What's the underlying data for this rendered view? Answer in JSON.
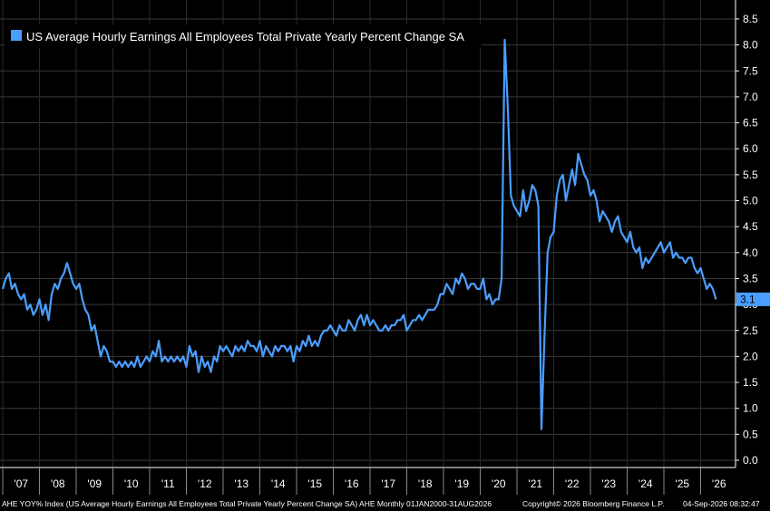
{
  "chart_data": {
    "type": "line",
    "title": "",
    "xlabel": "",
    "ylabel": "",
    "ylim": [
      0,
      8.8
    ],
    "grid": true,
    "legend_position": "top-left",
    "series": [
      {
        "name": "US Average Hourly Earnings All Employees Total Private Yearly Percent Change SA",
        "color": "#4a9eff",
        "points": [
          [
            "2007-01",
            3.3
          ],
          [
            "2007-02",
            3.5
          ],
          [
            "2007-03",
            3.6
          ],
          [
            "2007-04",
            3.3
          ],
          [
            "2007-05",
            3.4
          ],
          [
            "2007-06",
            3.2
          ],
          [
            "2007-07",
            3.1
          ],
          [
            "2007-08",
            3.2
          ],
          [
            "2007-09",
            2.9
          ],
          [
            "2007-10",
            3.0
          ],
          [
            "2007-11",
            2.8
          ],
          [
            "2007-12",
            2.9
          ],
          [
            "2008-01",
            3.1
          ],
          [
            "2008-02",
            2.8
          ],
          [
            "2008-03",
            3.0
          ],
          [
            "2008-04",
            2.7
          ],
          [
            "2008-05",
            3.2
          ],
          [
            "2008-06",
            3.4
          ],
          [
            "2008-07",
            3.3
          ],
          [
            "2008-08",
            3.5
          ],
          [
            "2008-09",
            3.6
          ],
          [
            "2008-10",
            3.8
          ],
          [
            "2008-11",
            3.6
          ],
          [
            "2008-12",
            3.4
          ],
          [
            "2009-01",
            3.3
          ],
          [
            "2009-02",
            3.4
          ],
          [
            "2009-03",
            3.1
          ],
          [
            "2009-04",
            2.9
          ],
          [
            "2009-05",
            2.8
          ],
          [
            "2009-06",
            2.5
          ],
          [
            "2009-07",
            2.6
          ],
          [
            "2009-08",
            2.3
          ],
          [
            "2009-09",
            2.0
          ],
          [
            "2009-10",
            2.2
          ],
          [
            "2009-11",
            2.1
          ],
          [
            "2009-12",
            1.9
          ],
          [
            "2010-01",
            1.9
          ],
          [
            "2010-02",
            1.8
          ],
          [
            "2010-03",
            1.9
          ],
          [
            "2010-04",
            1.8
          ],
          [
            "2010-05",
            1.9
          ],
          [
            "2010-06",
            1.8
          ],
          [
            "2010-07",
            1.9
          ],
          [
            "2010-08",
            1.8
          ],
          [
            "2010-09",
            2.0
          ],
          [
            "2010-10",
            1.8
          ],
          [
            "2010-11",
            1.9
          ],
          [
            "2010-12",
            2.0
          ],
          [
            "2011-01",
            1.9
          ],
          [
            "2011-02",
            2.1
          ],
          [
            "2011-03",
            2.0
          ],
          [
            "2011-04",
            2.3
          ],
          [
            "2011-05",
            1.9
          ],
          [
            "2011-06",
            2.0
          ],
          [
            "2011-07",
            1.9
          ],
          [
            "2011-08",
            2.0
          ],
          [
            "2011-09",
            1.9
          ],
          [
            "2011-10",
            2.0
          ],
          [
            "2011-11",
            1.9
          ],
          [
            "2011-12",
            2.0
          ],
          [
            "2012-01",
            1.8
          ],
          [
            "2012-02",
            2.2
          ],
          [
            "2012-03",
            2.0
          ],
          [
            "2012-04",
            2.1
          ],
          [
            "2012-05",
            1.7
          ],
          [
            "2012-06",
            2.0
          ],
          [
            "2012-07",
            1.8
          ],
          [
            "2012-08",
            1.9
          ],
          [
            "2012-09",
            1.7
          ],
          [
            "2012-10",
            2.0
          ],
          [
            "2012-11",
            1.9
          ],
          [
            "2012-12",
            2.2
          ],
          [
            "2013-01",
            2.1
          ],
          [
            "2013-02",
            2.2
          ],
          [
            "2013-03",
            2.1
          ],
          [
            "2013-04",
            2.0
          ],
          [
            "2013-05",
            2.2
          ],
          [
            "2013-06",
            2.1
          ],
          [
            "2013-07",
            2.2
          ],
          [
            "2013-08",
            2.1
          ],
          [
            "2013-09",
            2.3
          ],
          [
            "2013-10",
            2.2
          ],
          [
            "2013-11",
            2.2
          ],
          [
            "2013-12",
            2.1
          ],
          [
            "2014-01",
            2.3
          ],
          [
            "2014-02",
            2.0
          ],
          [
            "2014-03",
            2.2
          ],
          [
            "2014-04",
            2.1
          ],
          [
            "2014-05",
            2.0
          ],
          [
            "2014-06",
            2.2
          ],
          [
            "2014-07",
            2.1
          ],
          [
            "2014-08",
            2.2
          ],
          [
            "2014-09",
            2.2
          ],
          [
            "2014-10",
            2.1
          ],
          [
            "2014-11",
            2.2
          ],
          [
            "2014-12",
            1.9
          ],
          [
            "2015-01",
            2.2
          ],
          [
            "2015-02",
            2.1
          ],
          [
            "2015-03",
            2.3
          ],
          [
            "2015-04",
            2.2
          ],
          [
            "2015-05",
            2.4
          ],
          [
            "2015-06",
            2.2
          ],
          [
            "2015-07",
            2.3
          ],
          [
            "2015-08",
            2.2
          ],
          [
            "2015-09",
            2.4
          ],
          [
            "2015-10",
            2.5
          ],
          [
            "2015-11",
            2.5
          ],
          [
            "2015-12",
            2.6
          ],
          [
            "2016-01",
            2.5
          ],
          [
            "2016-02",
            2.4
          ],
          [
            "2016-03",
            2.6
          ],
          [
            "2016-04",
            2.5
          ],
          [
            "2016-05",
            2.5
          ],
          [
            "2016-06",
            2.7
          ],
          [
            "2016-07",
            2.6
          ],
          [
            "2016-08",
            2.5
          ],
          [
            "2016-09",
            2.7
          ],
          [
            "2016-10",
            2.8
          ],
          [
            "2016-11",
            2.6
          ],
          [
            "2016-12",
            2.8
          ],
          [
            "2017-01",
            2.6
          ],
          [
            "2017-02",
            2.7
          ],
          [
            "2017-03",
            2.6
          ],
          [
            "2017-04",
            2.5
          ],
          [
            "2017-05",
            2.5
          ],
          [
            "2017-06",
            2.6
          ],
          [
            "2017-07",
            2.5
          ],
          [
            "2017-08",
            2.6
          ],
          [
            "2017-09",
            2.6
          ],
          [
            "2017-10",
            2.7
          ],
          [
            "2017-11",
            2.7
          ],
          [
            "2017-12",
            2.8
          ],
          [
            "2018-01",
            2.5
          ],
          [
            "2018-02",
            2.6
          ],
          [
            "2018-03",
            2.7
          ],
          [
            "2018-04",
            2.7
          ],
          [
            "2018-05",
            2.8
          ],
          [
            "2018-06",
            2.7
          ],
          [
            "2018-07",
            2.8
          ],
          [
            "2018-08",
            2.9
          ],
          [
            "2018-09",
            2.9
          ],
          [
            "2018-10",
            2.9
          ],
          [
            "2018-11",
            3.0
          ],
          [
            "2018-12",
            3.2
          ],
          [
            "2019-01",
            3.2
          ],
          [
            "2019-02",
            3.4
          ],
          [
            "2019-03",
            3.3
          ],
          [
            "2019-04",
            3.2
          ],
          [
            "2019-05",
            3.5
          ],
          [
            "2019-06",
            3.4
          ],
          [
            "2019-07",
            3.6
          ],
          [
            "2019-08",
            3.5
          ],
          [
            "2019-09",
            3.3
          ],
          [
            "2019-10",
            3.4
          ],
          [
            "2019-11",
            3.4
          ],
          [
            "2019-12",
            3.3
          ],
          [
            "2020-01",
            3.3
          ],
          [
            "2020-02",
            3.5
          ],
          [
            "2020-03",
            3.1
          ],
          [
            "2020-04",
            3.2
          ],
          [
            "2020-05",
            3.0
          ],
          [
            "2020-06",
            3.1
          ],
          [
            "2020-07",
            3.1
          ],
          [
            "2020-08",
            3.5
          ],
          [
            "2020-09",
            8.1
          ],
          [
            "2020-10",
            6.8
          ],
          [
            "2020-11",
            5.1
          ],
          [
            "2020-12",
            4.9
          ],
          [
            "2021-01",
            4.8
          ],
          [
            "2021-02",
            4.7
          ],
          [
            "2021-03",
            5.2
          ],
          [
            "2021-04",
            4.8
          ],
          [
            "2021-05",
            5.0
          ],
          [
            "2021-06",
            5.3
          ],
          [
            "2021-07",
            5.2
          ],
          [
            "2021-08",
            4.9
          ],
          [
            "2021-09",
            0.6
          ],
          [
            "2021-10",
            2.4
          ],
          [
            "2021-11",
            4.0
          ],
          [
            "2021-12",
            4.3
          ],
          [
            "2022-01",
            4.4
          ],
          [
            "2022-02",
            5.1
          ],
          [
            "2022-03",
            5.4
          ],
          [
            "2022-04",
            5.5
          ],
          [
            "2022-05",
            5.0
          ],
          [
            "2022-06",
            5.3
          ],
          [
            "2022-07",
            5.6
          ],
          [
            "2022-08",
            5.3
          ],
          [
            "2022-09",
            5.9
          ],
          [
            "2022-10",
            5.7
          ],
          [
            "2022-11",
            5.5
          ],
          [
            "2022-12",
            5.4
          ],
          [
            "2023-01",
            5.1
          ],
          [
            "2023-02",
            5.2
          ],
          [
            "2023-03",
            5.0
          ],
          [
            "2023-04",
            4.6
          ],
          [
            "2023-05",
            4.8
          ],
          [
            "2023-06",
            4.7
          ],
          [
            "2023-07",
            4.6
          ],
          [
            "2023-08",
            4.4
          ],
          [
            "2023-09",
            4.6
          ],
          [
            "2023-10",
            4.7
          ],
          [
            "2023-11",
            4.4
          ],
          [
            "2023-12",
            4.3
          ],
          [
            "2024-01",
            4.2
          ],
          [
            "2024-02",
            4.4
          ],
          [
            "2024-03",
            4.1
          ],
          [
            "2024-04",
            4.0
          ],
          [
            "2024-05",
            4.1
          ],
          [
            "2024-06",
            3.7
          ],
          [
            "2024-07",
            3.9
          ],
          [
            "2024-08",
            3.8
          ],
          [
            "2024-09",
            3.9
          ],
          [
            "2024-10",
            4.0
          ],
          [
            "2024-11",
            4.1
          ],
          [
            "2024-12",
            4.2
          ],
          [
            "2025-01",
            4.0
          ],
          [
            "2025-02",
            4.1
          ],
          [
            "2025-03",
            4.2
          ],
          [
            "2025-04",
            3.9
          ],
          [
            "2025-05",
            4.0
          ],
          [
            "2025-06",
            3.9
          ],
          [
            "2025-07",
            3.9
          ],
          [
            "2025-08",
            3.8
          ],
          [
            "2025-09",
            3.9
          ],
          [
            "2025-10",
            3.9
          ],
          [
            "2025-11",
            3.7
          ],
          [
            "2025-12",
            3.6
          ],
          [
            "2026-01",
            3.7
          ],
          [
            "2026-02",
            3.5
          ],
          [
            "2026-03",
            3.3
          ],
          [
            "2026-04",
            3.4
          ],
          [
            "2026-05",
            3.3
          ],
          [
            "2026-06",
            3.1
          ]
        ]
      }
    ],
    "x_ticks": [
      {
        "date": "2007-01",
        "label": "'07"
      },
      {
        "date": "2008-01",
        "label": "'08"
      },
      {
        "date": "2009-01",
        "label": "'09"
      },
      {
        "date": "2010-01",
        "label": "'10"
      },
      {
        "date": "2011-01",
        "label": "'11"
      },
      {
        "date": "2012-01",
        "label": "'12"
      },
      {
        "date": "2013-01",
        "label": "'13"
      },
      {
        "date": "2014-01",
        "label": "'14"
      },
      {
        "date": "2015-01",
        "label": "'15"
      },
      {
        "date": "2016-01",
        "label": "'16"
      },
      {
        "date": "2017-01",
        "label": "'17"
      },
      {
        "date": "2018-01",
        "label": "'18"
      },
      {
        "date": "2019-01",
        "label": "'19"
      },
      {
        "date": "2020-01",
        "label": "'20"
      },
      {
        "date": "2021-01",
        "label": "'21"
      },
      {
        "date": "2022-01",
        "label": "'22"
      },
      {
        "date": "2023-01",
        "label": "'23"
      },
      {
        "date": "2024-01",
        "label": "'24"
      },
      {
        "date": "2025-01",
        "label": "'25"
      },
      {
        "date": "2026-01",
        "label": "'26"
      }
    ],
    "y_ticks": [
      "0.0",
      "0.5",
      "1.0",
      "1.5",
      "2.0",
      "2.5",
      "3.0",
      "3.5",
      "4.0",
      "4.5",
      "5.0",
      "5.5",
      "6.0",
      "6.5",
      "7.0",
      "7.5",
      "8.0",
      "8.5"
    ],
    "last_value_label": "3.1",
    "last_value_color": "#4a9eff"
  },
  "footer": {
    "left": "AHE YOY% Index (US Average Hourly Earnings All Employees Total Private Yearly Percent Change SA) AHE Monthly 01JAN2000-31AUG2026",
    "center": "Copyright© 2026 Bloomberg Finance L.P.",
    "right": "04-Sep-2026 08:32:47"
  }
}
